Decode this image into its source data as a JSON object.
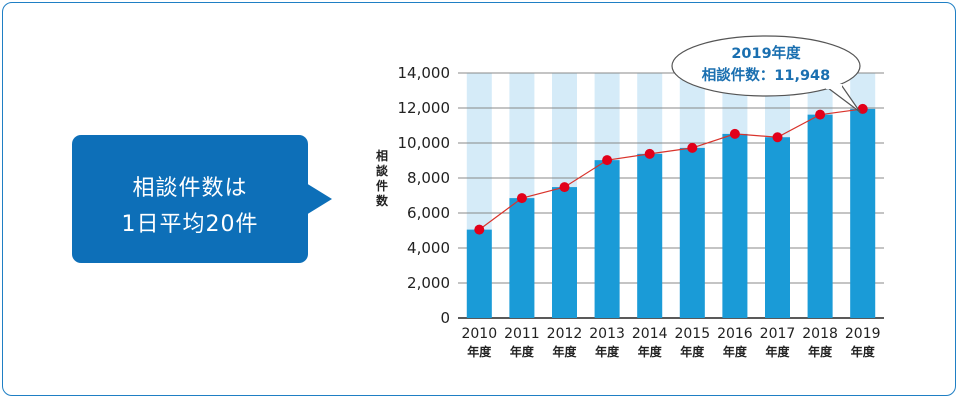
{
  "callout": {
    "line1": "相談件数は",
    "line2": "1日平均20件"
  },
  "bubble": {
    "line1": "2019年度",
    "line2": "相談件数：11,948"
  },
  "colors": {
    "frame": "#1f7fc4",
    "callout": "#0d6fb8",
    "bar": "#1a9bd7",
    "bar_background": "#d5ebf8",
    "line": "#d9332b",
    "point": "#e2001a"
  },
  "chart_data": {
    "type": "bar",
    "ylabel": "相談件数",
    "ylim": [
      0,
      14000
    ],
    "yticks": [
      "0",
      "2,000",
      "4,000",
      "6,000",
      "8,000",
      "10,000",
      "12,000",
      "14,000"
    ],
    "categories": [
      "2010",
      "2011",
      "2012",
      "2013",
      "2014",
      "2015",
      "2016",
      "2017",
      "2018",
      "2019"
    ],
    "category_suffix": "年度",
    "values": [
      5050,
      6850,
      7480,
      9020,
      9380,
      9720,
      10520,
      10330,
      11620,
      11948
    ],
    "overlay": "line-with-points"
  }
}
